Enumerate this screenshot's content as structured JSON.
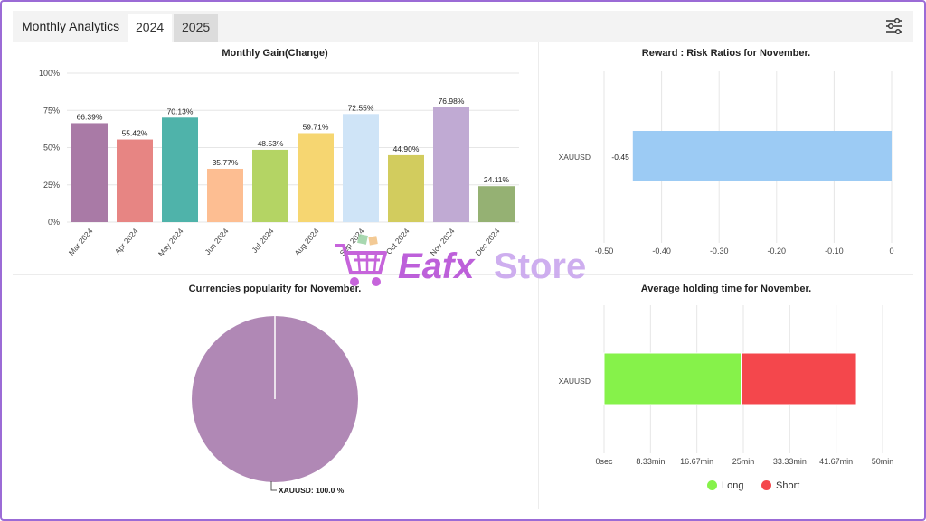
{
  "header": {
    "title": "Monthly Analytics",
    "tabs": [
      {
        "label": "2024",
        "active": true
      },
      {
        "label": "2025",
        "active": false
      }
    ]
  },
  "watermark": {
    "text": "EafxStore",
    "part1": "Eafx",
    "part2": "Store"
  },
  "charts": {
    "monthly_gain": {
      "title": "Monthly Gain(Change)",
      "yticks": [
        "0%",
        "25%",
        "50%",
        "75%",
        "100%"
      ]
    },
    "reward_risk": {
      "title": "Reward : Risk Ratios for November.",
      "xticks": [
        "-0.50",
        "-0.40",
        "-0.30",
        "-0.20",
        "-0.10",
        "0"
      ]
    },
    "currencies": {
      "title": "Currencies popularity for November.",
      "slice_label": "XAUUSD: 100.0 %"
    },
    "holding": {
      "title": "Average holding time for November.",
      "xticks": [
        "0sec",
        "8.33min",
        "16.67min",
        "25min",
        "33.33min",
        "41.67min",
        "50min"
      ],
      "legend": [
        {
          "label": "Long",
          "color": "#86f24a"
        },
        {
          "label": "Short",
          "color": "#f4474c"
        }
      ]
    }
  },
  "chart_data": [
    {
      "type": "bar",
      "title": "Monthly Gain(Change)",
      "categories": [
        "Mar 2024",
        "Apr 2024",
        "May 2024",
        "Jun 2024",
        "Jul 2024",
        "Aug 2024",
        "Sep 2024",
        "Oct 2024",
        "Nov 2024",
        "Dec 2024"
      ],
      "values": [
        66.39,
        55.42,
        70.13,
        35.77,
        48.53,
        59.71,
        72.55,
        44.9,
        76.98,
        24.11
      ],
      "value_labels": [
        "66.39%",
        "55.42%",
        "70.13%",
        "35.77%",
        "48.53%",
        "59.71%",
        "72.55%",
        "44.90%",
        "76.98%",
        "24.11%"
      ],
      "colors": [
        "#a97aa6",
        "#e78583",
        "#4fb3aa",
        "#fdbe92",
        "#b4d464",
        "#f6d671",
        "#cfe4f7",
        "#d2cc5e",
        "#c0aad3",
        "#95b173"
      ],
      "ylim": [
        0,
        100
      ],
      "grid": true
    },
    {
      "type": "bar",
      "orientation": "horizontal",
      "title": "Reward : Risk Ratios for November.",
      "categories": [
        "XAUUSD"
      ],
      "values": [
        -0.45
      ],
      "value_labels": [
        "-0.45"
      ],
      "xlim": [
        -0.5,
        0
      ],
      "color": "#9ccbf4",
      "grid": true
    },
    {
      "type": "pie",
      "title": "Currencies popularity for November.",
      "categories": [
        "XAUUSD"
      ],
      "values": [
        100.0
      ],
      "color": "#b088b5"
    },
    {
      "type": "bar",
      "orientation": "horizontal",
      "stacked": true,
      "title": "Average holding time for November.",
      "categories": [
        "XAUUSD"
      ],
      "series": [
        {
          "name": "Long",
          "values": [
            24.6
          ]
        },
        {
          "name": "Short",
          "values": [
            20.7
          ]
        }
      ],
      "xlim": [
        0,
        50
      ],
      "legend": "bottom",
      "grid": true
    }
  ]
}
